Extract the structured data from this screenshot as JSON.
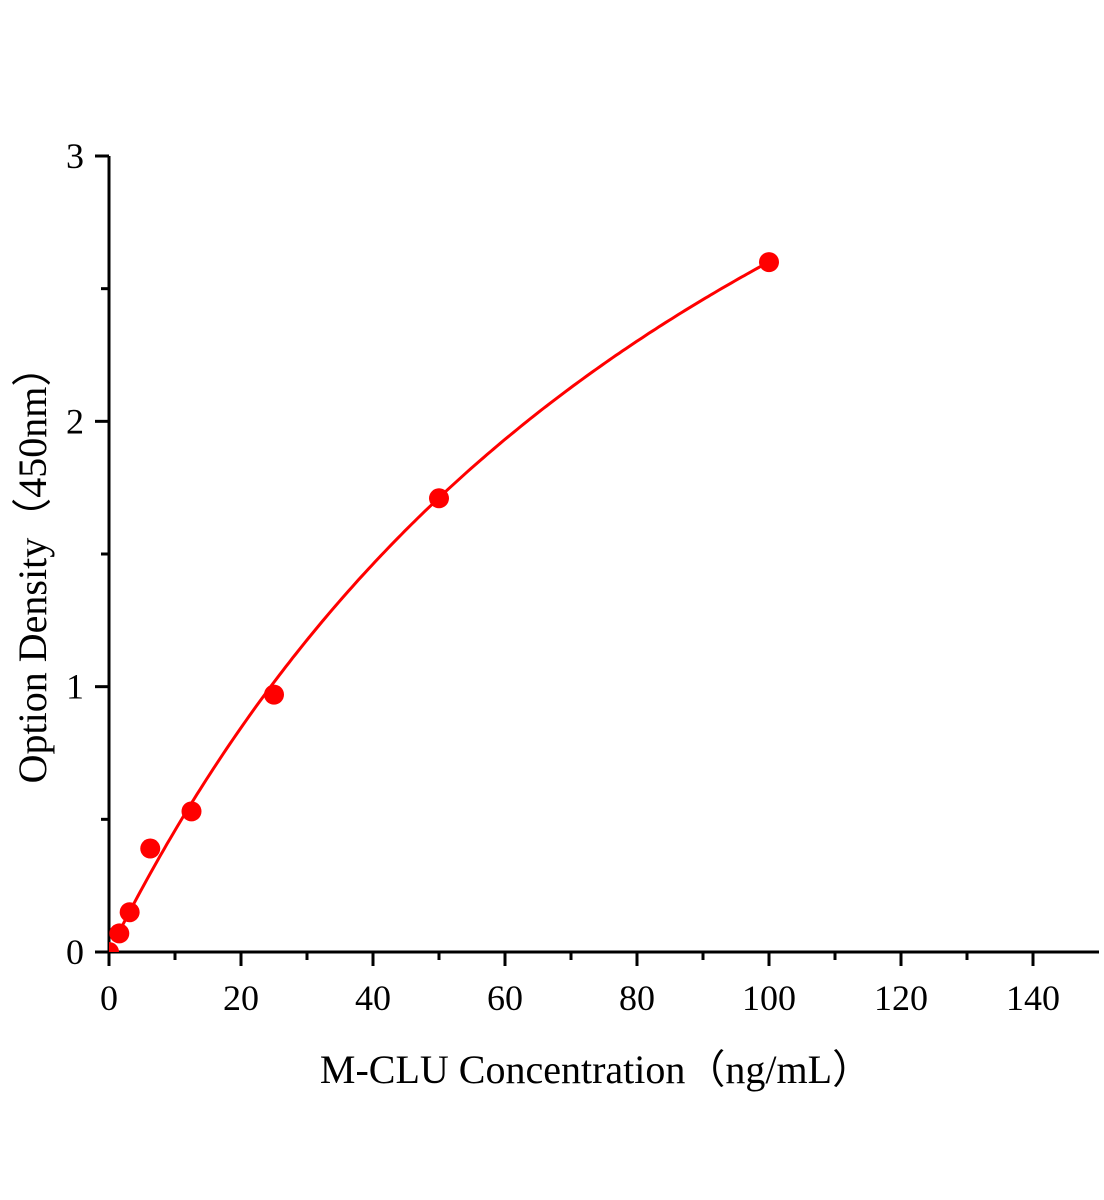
{
  "chart_data": {
    "type": "scatter",
    "title": "",
    "xlabel": "M-CLU Concentration（ng/mL）",
    "ylabel": "Option Density（450nm）",
    "xlim": [
      0,
      150
    ],
    "ylim": [
      0,
      3
    ],
    "x_ticks": [
      0,
      20,
      40,
      60,
      80,
      100,
      120,
      140
    ],
    "x_tick_labels": [
      "0",
      "20",
      "40",
      "60",
      "80",
      "100",
      "120",
      "140"
    ],
    "y_ticks": [
      0,
      1,
      2,
      3
    ],
    "y_tick_labels": [
      "0",
      "1",
      "2",
      "3"
    ],
    "grid": false,
    "legend": "none",
    "color": "#ff0000",
    "series": [
      {
        "points": [
          {
            "x": 0,
            "y": 0
          },
          {
            "x": 1.56,
            "y": 0.07
          },
          {
            "x": 3.13,
            "y": 0.15
          },
          {
            "x": 6.25,
            "y": 0.39
          },
          {
            "x": 12.5,
            "y": 0.53
          },
          {
            "x": 25,
            "y": 0.97
          },
          {
            "x": 50,
            "y": 1.71
          },
          {
            "x": 100,
            "y": 2.6
          }
        ],
        "fit_curve": true
      }
    ]
  }
}
